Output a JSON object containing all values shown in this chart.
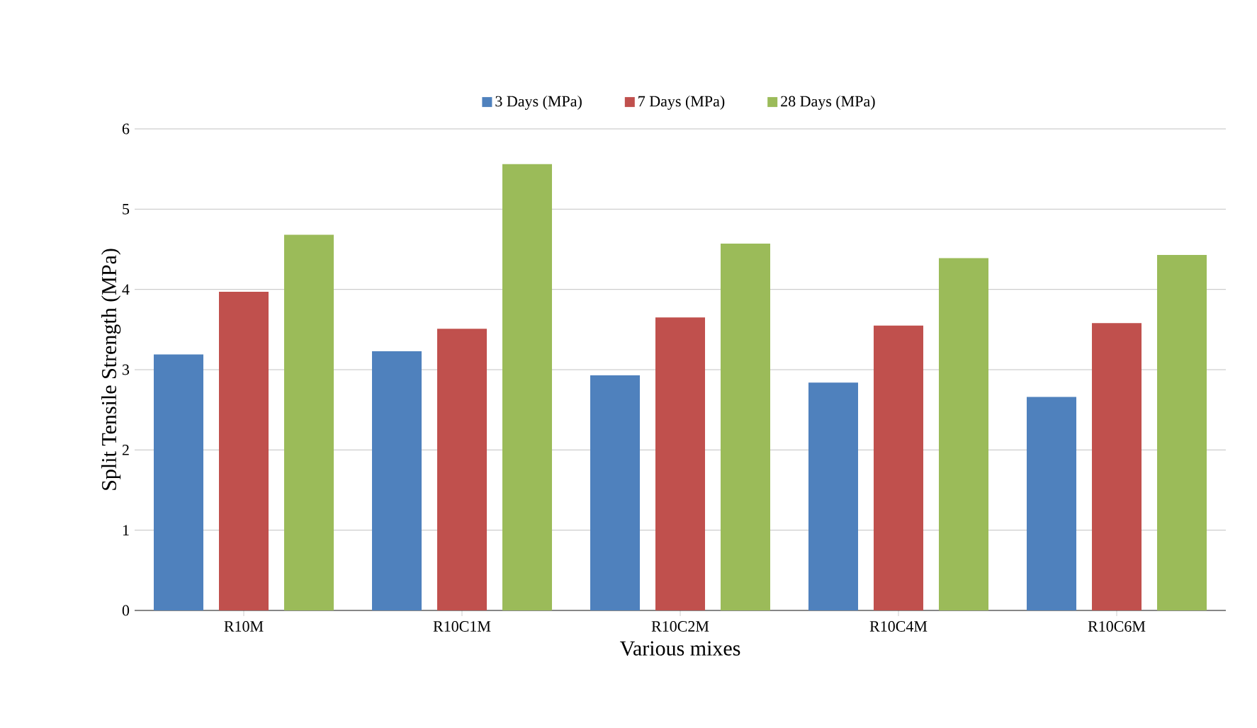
{
  "chart_data": {
    "type": "bar",
    "xlabel": "Various mixes",
    "ylabel": "Split Tensile Strength (MPa)",
    "categories": [
      "R10M",
      "R10C1M",
      "R10C2M",
      "R10C4M",
      "R10C6M"
    ],
    "series": [
      {
        "name": "3 Days (MPa)",
        "color": "#4f81bd",
        "values": [
          3.19,
          3.23,
          2.93,
          2.84,
          2.66
        ]
      },
      {
        "name": "7 Days (MPa)",
        "color": "#c0504d",
        "values": [
          3.97,
          3.51,
          3.65,
          3.55,
          3.58
        ]
      },
      {
        "name": "28 Days (MPa)",
        "color": "#9bbb59",
        "values": [
          4.68,
          5.56,
          4.57,
          4.39,
          4.43
        ]
      }
    ],
    "ylim": [
      0,
      6
    ],
    "yticks": [
      0,
      1,
      2,
      3,
      4,
      5,
      6
    ],
    "grid": "y",
    "legend": "top"
  }
}
